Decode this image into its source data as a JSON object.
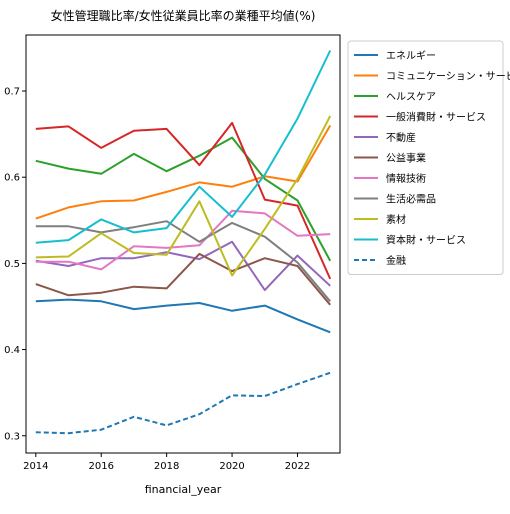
{
  "chart_data": {
    "type": "line",
    "title": "女性管理職比率/女性従業員比率の業種平均値(%)",
    "xlabel": "financial_year",
    "ylabel": "",
    "xlim": [
      2013.7,
      2023.3
    ],
    "ylim": [
      0.28,
      0.765
    ],
    "xticks": [
      2014,
      2016,
      2018,
      2020,
      2022
    ],
    "yticks": [
      0.3,
      0.4,
      0.5,
      0.6,
      0.7
    ],
    "ytick_labels": [
      "0.3",
      "0.4",
      "0.5",
      "0.6",
      "0.7"
    ],
    "grid": false,
    "legend_position": "upper right, outside plot area",
    "x": [
      2014,
      2015,
      2016,
      2017,
      2018,
      2019,
      2020,
      2021,
      2022,
      2023
    ],
    "series": [
      {
        "name": "エネルギー",
        "color": "#1f77b4",
        "dashed": false,
        "values": [
          0.456,
          0.458,
          0.456,
          0.447,
          0.451,
          0.454,
          0.445,
          0.451,
          0.435,
          0.42
        ]
      },
      {
        "name": "コミュニケーション・サービス",
        "color": "#ff7f0e",
        "dashed": false,
        "values": [
          0.552,
          0.565,
          0.572,
          0.573,
          0.583,
          0.594,
          0.589,
          0.601,
          0.595,
          0.66
        ]
      },
      {
        "name": "ヘルスケア",
        "color": "#2ca02c",
        "dashed": false,
        "values": [
          0.619,
          0.61,
          0.604,
          0.627,
          0.607,
          0.625,
          0.646,
          0.598,
          0.573,
          0.503
        ]
      },
      {
        "name": "一般消費財・サービス",
        "color": "#d62728",
        "dashed": false,
        "values": [
          0.656,
          0.659,
          0.634,
          0.654,
          0.656,
          0.614,
          0.663,
          0.574,
          0.567,
          0.482
        ]
      },
      {
        "name": "不動産",
        "color": "#9467bd",
        "dashed": false,
        "values": [
          0.503,
          0.497,
          0.506,
          0.506,
          0.513,
          0.505,
          0.525,
          0.469,
          0.509,
          0.474
        ]
      },
      {
        "name": "公益事業",
        "color": "#8c564b",
        "dashed": false,
        "values": [
          0.476,
          0.463,
          0.466,
          0.473,
          0.471,
          0.511,
          0.491,
          0.506,
          0.497,
          0.452
        ]
      },
      {
        "name": "情報技術",
        "color": "#e377c2",
        "dashed": false,
        "values": [
          0.502,
          0.502,
          0.493,
          0.52,
          0.518,
          0.521,
          0.561,
          0.558,
          0.532,
          0.534
        ]
      },
      {
        "name": "生活必需品",
        "color": "#7f7f7f",
        "dashed": false,
        "values": [
          0.543,
          0.543,
          0.536,
          0.542,
          0.549,
          0.525,
          0.547,
          0.531,
          0.501,
          0.456
        ]
      },
      {
        "name": "素材",
        "color": "#bcbd22",
        "dashed": false,
        "values": [
          0.507,
          0.508,
          0.535,
          0.512,
          0.51,
          0.572,
          0.486,
          0.54,
          0.598,
          0.671
        ]
      },
      {
        "name": "資本財・サービス",
        "color": "#17becf",
        "dashed": false,
        "values": [
          0.524,
          0.527,
          0.551,
          0.536,
          0.541,
          0.589,
          0.554,
          0.603,
          0.668,
          0.747
        ]
      },
      {
        "name": "金融",
        "color": "#1f77b4",
        "dashed": true,
        "values": [
          0.304,
          0.303,
          0.307,
          0.322,
          0.312,
          0.325,
          0.347,
          0.346,
          0.36,
          0.373
        ]
      }
    ]
  }
}
